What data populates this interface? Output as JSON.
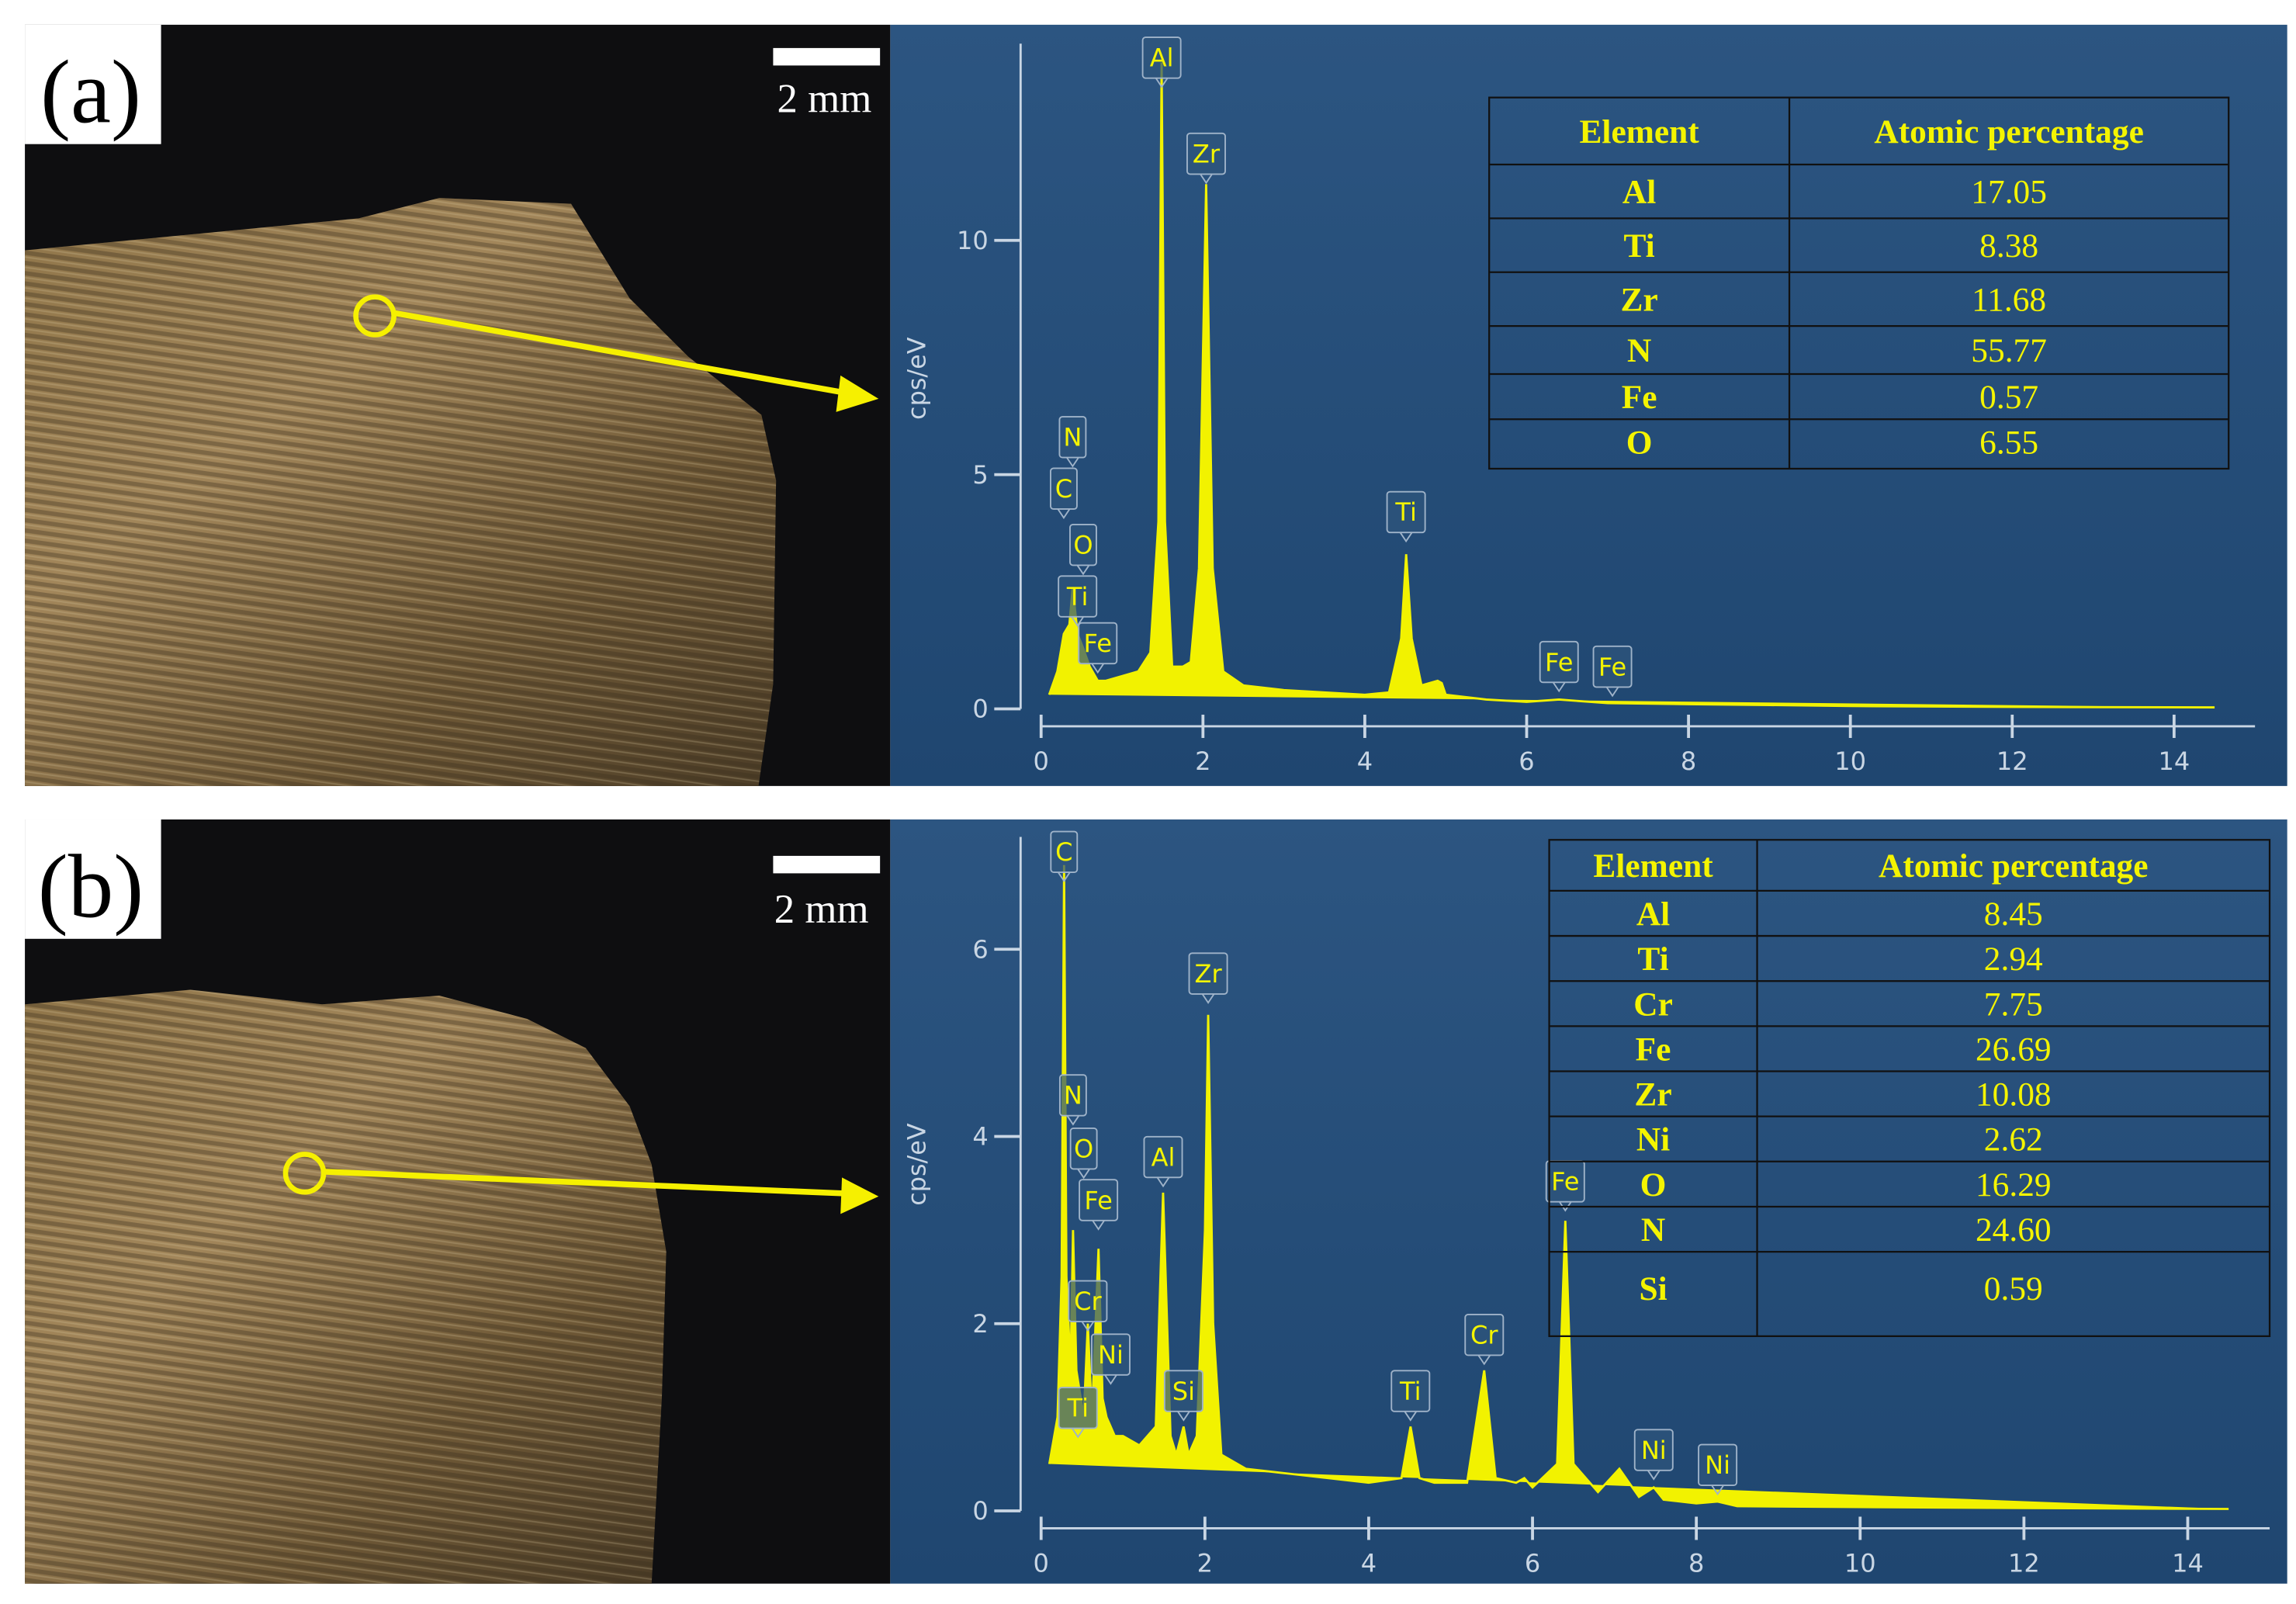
{
  "panels": [
    {
      "label": "(a)",
      "scale_bar": "2 mm",
      "table": {
        "header": [
          "Element",
          "Atomic percentage"
        ],
        "rows": [
          [
            "Al",
            "17.05"
          ],
          [
            "Ti",
            "8.38"
          ],
          [
            "Zr",
            "11.68"
          ],
          [
            "N",
            "55.77"
          ],
          [
            "Fe",
            "0.57"
          ],
          [
            "O",
            "6.55"
          ]
        ]
      }
    },
    {
      "label": "(b)",
      "scale_bar": "2 mm",
      "table": {
        "header": [
          "Element",
          "Atomic percentage"
        ],
        "rows": [
          [
            "Al",
            "8.45"
          ],
          [
            "Ti",
            "2.94"
          ],
          [
            "Cr",
            "7.75"
          ],
          [
            "Fe",
            "26.69"
          ],
          [
            "Zr",
            "10.08"
          ],
          [
            "Ni",
            "2.62"
          ],
          [
            "O",
            "16.29"
          ],
          [
            "N",
            "24.60"
          ],
          [
            "Si",
            "0.59"
          ]
        ]
      }
    }
  ],
  "chart_data": [
    {
      "type": "area",
      "ylabel": "cps/eV",
      "color": "#f2f200",
      "x": [
        0.1,
        0.2,
        0.28,
        0.35,
        0.39,
        0.45,
        0.52,
        0.6,
        0.7,
        0.8,
        1.0,
        1.2,
        1.35,
        1.45,
        1.49,
        1.53,
        1.62,
        1.75,
        1.85,
        1.95,
        2.04,
        2.12,
        2.25,
        2.5,
        3.0,
        3.5,
        4.0,
        4.3,
        4.45,
        4.51,
        4.58,
        4.7,
        4.9,
        4.95,
        5.0,
        5.5,
        6.0,
        6.4,
        7.0,
        8,
        9,
        10,
        12,
        14.5
      ],
      "values": [
        0.3,
        0.8,
        1.6,
        1.8,
        2.6,
        1.6,
        1.3,
        0.9,
        0.6,
        0.6,
        0.7,
        0.8,
        1.2,
        4.0,
        13.8,
        4.0,
        0.9,
        0.9,
        1.0,
        3.0,
        11.2,
        3.0,
        0.8,
        0.5,
        0.4,
        0.35,
        0.3,
        0.35,
        1.5,
        3.3,
        1.5,
        0.5,
        0.6,
        0.55,
        0.3,
        0.2,
        0.15,
        0.2,
        0.12,
        0.1,
        0.08,
        0.06,
        0.04,
        0.03
      ],
      "xlim": [
        0,
        15
      ],
      "ylim": [
        0,
        14.2
      ],
      "xticks": [
        0,
        2,
        4,
        6,
        8,
        10,
        12,
        14
      ],
      "yticks": [
        0,
        5,
        10
      ],
      "annotations": [
        {
          "text": "N",
          "x": 0.39,
          "y": 5.8
        },
        {
          "text": "C",
          "x": 0.28,
          "y": 4.7
        },
        {
          "text": "O",
          "x": 0.52,
          "y": 3.5
        },
        {
          "text": "Ti",
          "x": 0.45,
          "y": 2.4
        },
        {
          "text": "Fe",
          "x": 0.7,
          "y": 1.4
        },
        {
          "text": "Al",
          "x": 1.49,
          "y": 13.9
        },
        {
          "text": "Zr",
          "x": 2.04,
          "y": 11.85
        },
        {
          "text": "Ti",
          "x": 4.51,
          "y": 4.2
        },
        {
          "text": "Fe",
          "x": 6.4,
          "y": 1.0
        },
        {
          "text": "Fe",
          "x": 7.06,
          "y": 0.9
        }
      ]
    },
    {
      "type": "area",
      "ylabel": "cps/eV",
      "color": "#f2f200",
      "x": [
        0.1,
        0.2,
        0.25,
        0.28,
        0.31,
        0.36,
        0.39,
        0.43,
        0.52,
        0.57,
        0.62,
        0.7,
        0.75,
        0.8,
        0.85,
        0.9,
        1.0,
        1.2,
        1.4,
        1.49,
        1.58,
        1.65,
        1.74,
        1.8,
        1.9,
        2.0,
        2.04,
        2.1,
        2.2,
        2.5,
        3.0,
        3.5,
        4.0,
        4.4,
        4.51,
        4.62,
        4.8,
        5.2,
        5.41,
        5.55,
        5.8,
        5.9,
        6.0,
        6.3,
        6.4,
        6.5,
        6.8,
        7.06,
        7.3,
        7.48,
        7.6,
        8.0,
        8.26,
        8.5,
        10,
        12,
        14.5
      ],
      "values": [
        0.5,
        1.0,
        2.5,
        6.9,
        2.5,
        1.5,
        3.0,
        1.5,
        1.0,
        2.0,
        1.0,
        2.8,
        1.2,
        1.0,
        0.9,
        0.8,
        0.8,
        0.7,
        0.9,
        3.4,
        0.8,
        0.6,
        0.9,
        0.6,
        0.8,
        3.0,
        5.3,
        2.0,
        0.6,
        0.45,
        0.4,
        0.35,
        0.3,
        0.35,
        0.9,
        0.35,
        0.3,
        0.3,
        1.5,
        0.35,
        0.3,
        0.35,
        0.25,
        0.5,
        3.1,
        0.5,
        0.2,
        0.45,
        0.15,
        0.25,
        0.12,
        0.08,
        0.1,
        0.05,
        0.04,
        0.03,
        0.02
      ],
      "xlim": [
        0,
        15
      ],
      "ylim": [
        0,
        7.2
      ],
      "xticks": [
        0,
        2,
        4,
        6,
        8,
        10,
        12,
        14
      ],
      "yticks": [
        0,
        2,
        4,
        6
      ],
      "annotations": [
        {
          "text": "C",
          "x": 0.28,
          "y": 7.04
        },
        {
          "text": "N",
          "x": 0.39,
          "y": 4.44
        },
        {
          "text": "O",
          "x": 0.52,
          "y": 3.87
        },
        {
          "text": "Fe",
          "x": 0.7,
          "y": 3.32
        },
        {
          "text": "Cr",
          "x": 0.57,
          "y": 2.24
        },
        {
          "text": "Ni",
          "x": 0.85,
          "y": 1.67
        },
        {
          "text": "Ti",
          "x": 0.45,
          "y": 1.1
        },
        {
          "text": "Al",
          "x": 1.49,
          "y": 3.78
        },
        {
          "text": "Si",
          "x": 1.74,
          "y": 1.28
        },
        {
          "text": "Zr",
          "x": 2.04,
          "y": 5.74
        },
        {
          "text": "Ti",
          "x": 4.51,
          "y": 1.28
        },
        {
          "text": "Cr",
          "x": 5.41,
          "y": 1.88
        },
        {
          "text": "Fe",
          "x": 6.4,
          "y": 3.52
        },
        {
          "text": "Ni",
          "x": 7.48,
          "y": 0.65
        },
        {
          "text": "Ni",
          "x": 8.26,
          "y": 0.49
        }
      ]
    }
  ]
}
